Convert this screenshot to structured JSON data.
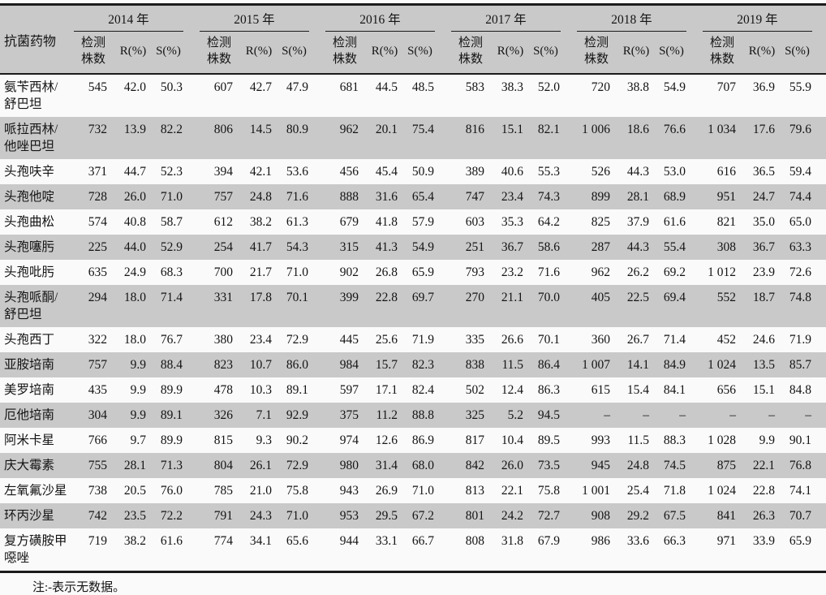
{
  "table": {
    "corner": "抗菌药物",
    "years": [
      "2014 年",
      "2015 年",
      "2016 年",
      "2017 年",
      "2018 年",
      "2019 年"
    ],
    "sub": {
      "count": "检测株数",
      "r": "R(%)",
      "s": "S(%)"
    },
    "no_data_symbol": "–",
    "colors": {
      "stripe": "#c9c9c9",
      "rule": "#1b1b1b"
    },
    "rows": [
      {
        "drug": "氨苄西林/舒巴坦",
        "cells": [
          "545",
          "42.0",
          "50.3",
          "607",
          "42.7",
          "47.9",
          "681",
          "44.5",
          "48.5",
          "583",
          "38.3",
          "52.0",
          "720",
          "38.8",
          "54.9",
          "707",
          "36.9",
          "55.9"
        ]
      },
      {
        "drug": "哌拉西林/他唑巴坦",
        "cells": [
          "732",
          "13.9",
          "82.2",
          "806",
          "14.5",
          "80.9",
          "962",
          "20.1",
          "75.4",
          "816",
          "15.1",
          "82.1",
          "1 006",
          "18.6",
          "76.6",
          "1 034",
          "17.6",
          "79.6"
        ]
      },
      {
        "drug": "头孢呋辛",
        "cells": [
          "371",
          "44.7",
          "52.3",
          "394",
          "42.1",
          "53.6",
          "456",
          "45.4",
          "50.9",
          "389",
          "40.6",
          "55.3",
          "526",
          "44.3",
          "53.0",
          "616",
          "36.5",
          "59.4"
        ]
      },
      {
        "drug": "头孢他啶",
        "cells": [
          "728",
          "26.0",
          "71.0",
          "757",
          "24.8",
          "71.6",
          "888",
          "31.6",
          "65.4",
          "747",
          "23.4",
          "74.3",
          "899",
          "28.1",
          "68.9",
          "951",
          "24.7",
          "74.4"
        ]
      },
      {
        "drug": "头孢曲松",
        "cells": [
          "574",
          "40.8",
          "58.7",
          "612",
          "38.2",
          "61.3",
          "679",
          "41.8",
          "57.9",
          "603",
          "35.3",
          "64.2",
          "825",
          "37.9",
          "61.6",
          "821",
          "35.0",
          "65.0"
        ]
      },
      {
        "drug": "头孢噻肟",
        "cells": [
          "225",
          "44.0",
          "52.9",
          "254",
          "41.7",
          "54.3",
          "315",
          "41.3",
          "54.9",
          "251",
          "36.7",
          "58.6",
          "287",
          "44.3",
          "55.4",
          "308",
          "36.7",
          "63.3"
        ]
      },
      {
        "drug": "头孢吡肟",
        "cells": [
          "635",
          "24.9",
          "68.3",
          "700",
          "21.7",
          "71.0",
          "902",
          "26.8",
          "65.9",
          "793",
          "23.2",
          "71.6",
          "962",
          "26.2",
          "69.2",
          "1 012",
          "23.9",
          "72.6"
        ]
      },
      {
        "drug": "头孢哌酮/舒巴坦",
        "cells": [
          "294",
          "18.0",
          "71.4",
          "331",
          "17.8",
          "70.1",
          "399",
          "22.8",
          "69.7",
          "270",
          "21.1",
          "70.0",
          "405",
          "22.5",
          "69.4",
          "552",
          "18.7",
          "74.8"
        ]
      },
      {
        "drug": "头孢西丁",
        "cells": [
          "322",
          "18.0",
          "76.7",
          "380",
          "23.4",
          "72.9",
          "445",
          "25.6",
          "71.9",
          "335",
          "26.6",
          "70.1",
          "360",
          "26.7",
          "71.4",
          "452",
          "24.6",
          "71.9"
        ]
      },
      {
        "drug": "亚胺培南",
        "cells": [
          "757",
          "9.9",
          "88.4",
          "823",
          "10.7",
          "86.0",
          "984",
          "15.7",
          "82.3",
          "838",
          "11.5",
          "86.4",
          "1 007",
          "14.1",
          "84.9",
          "1 024",
          "13.5",
          "85.7"
        ]
      },
      {
        "drug": "美罗培南",
        "cells": [
          "435",
          "9.9",
          "89.9",
          "478",
          "10.3",
          "89.1",
          "597",
          "17.1",
          "82.4",
          "502",
          "12.4",
          "86.3",
          "615",
          "15.4",
          "84.1",
          "656",
          "15.1",
          "84.8"
        ]
      },
      {
        "drug": "厄他培南",
        "cells": [
          "304",
          "9.9",
          "89.1",
          "326",
          "7.1",
          "92.9",
          "375",
          "11.2",
          "88.8",
          "325",
          "5.2",
          "94.5",
          "–",
          "–",
          "–",
          "–",
          "–",
          "–"
        ]
      },
      {
        "drug": "阿米卡星",
        "cells": [
          "766",
          "9.7",
          "89.9",
          "815",
          "9.3",
          "90.2",
          "974",
          "12.6",
          "86.9",
          "817",
          "10.4",
          "89.5",
          "993",
          "11.5",
          "88.3",
          "1 028",
          "9.9",
          "90.1"
        ]
      },
      {
        "drug": "庆大霉素",
        "cells": [
          "755",
          "28.1",
          "71.3",
          "804",
          "26.1",
          "72.9",
          "980",
          "31.4",
          "68.0",
          "842",
          "26.0",
          "73.5",
          "945",
          "24.8",
          "74.5",
          "875",
          "22.1",
          "76.8"
        ]
      },
      {
        "drug": "左氧氟沙星",
        "cells": [
          "738",
          "20.5",
          "76.0",
          "785",
          "21.0",
          "75.8",
          "943",
          "26.9",
          "71.0",
          "813",
          "22.1",
          "75.8",
          "1 001",
          "25.4",
          "71.8",
          "1 024",
          "22.8",
          "74.1"
        ]
      },
      {
        "drug": "环丙沙星",
        "cells": [
          "742",
          "23.5",
          "72.2",
          "791",
          "24.3",
          "71.0",
          "953",
          "29.5",
          "67.2",
          "801",
          "24.2",
          "72.7",
          "908",
          "29.2",
          "67.5",
          "841",
          "26.3",
          "70.7"
        ]
      },
      {
        "drug": "复方磺胺甲噁唑",
        "cells": [
          "719",
          "38.2",
          "61.6",
          "774",
          "34.1",
          "65.6",
          "944",
          "33.1",
          "66.7",
          "808",
          "31.8",
          "67.9",
          "986",
          "33.6",
          "66.3",
          "971",
          "33.9",
          "65.9"
        ]
      }
    ],
    "note": "注:-表示无数据。"
  }
}
